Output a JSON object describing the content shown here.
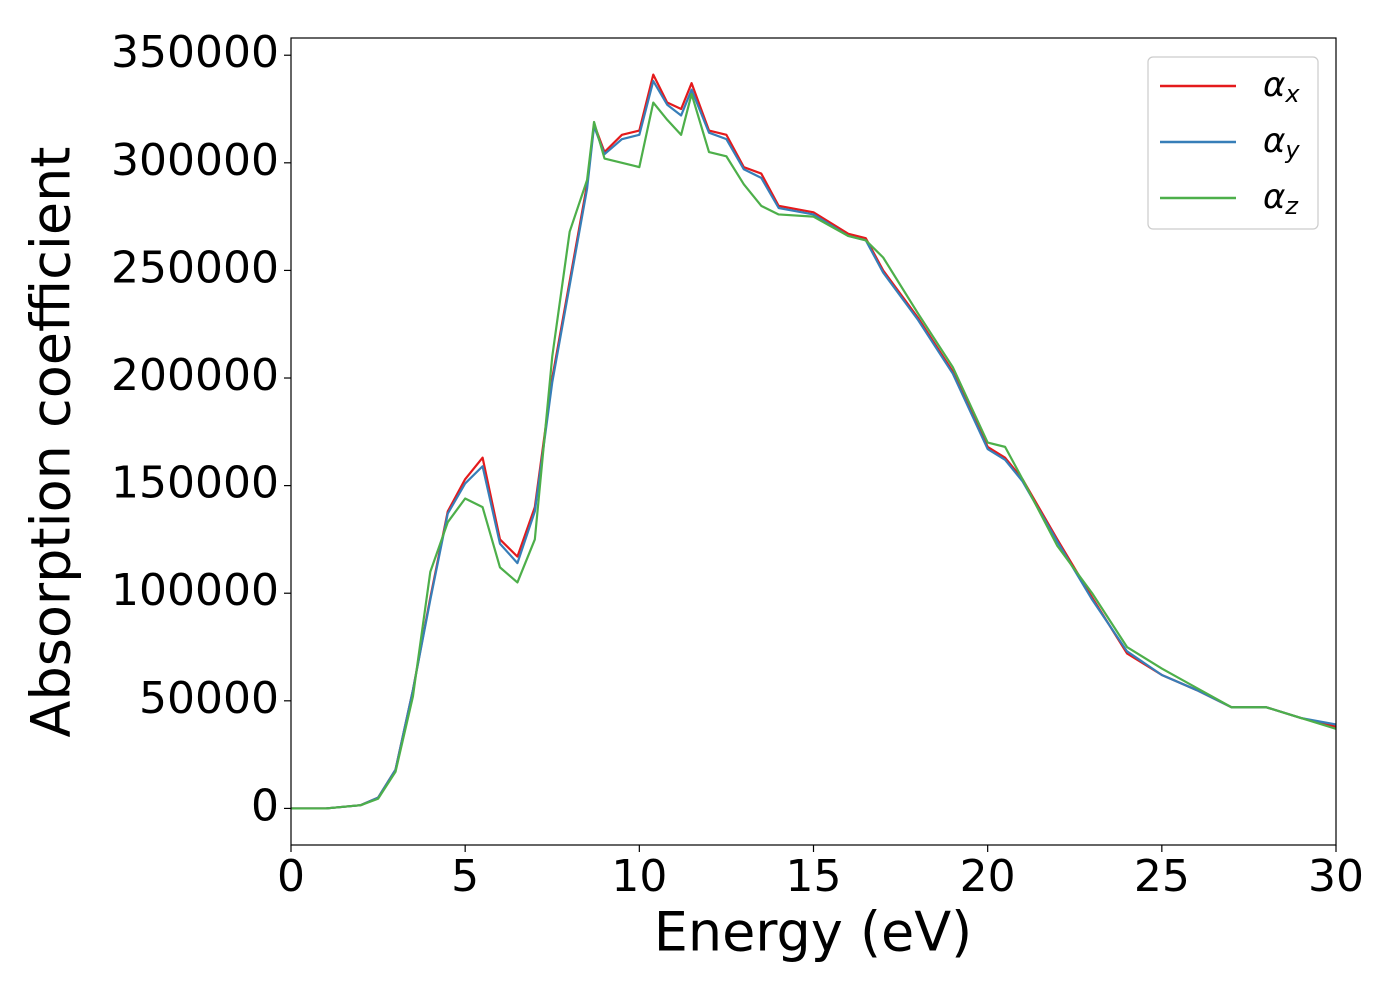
{
  "chart_data": {
    "type": "line",
    "xlabel": "Energy (eV)",
    "ylabel": "Absorption coefficient",
    "x": [
      0,
      1,
      2,
      2.5,
      3,
      3.5,
      4,
      4.5,
      5,
      5.5,
      6,
      6.5,
      7,
      7.5,
      8,
      8.5,
      8.7,
      9,
      9.5,
      10,
      10.4,
      10.8,
      11.2,
      11.5,
      12,
      12.5,
      13,
      13.5,
      14,
      15,
      16,
      16.5,
      17,
      18,
      19,
      20,
      20.5,
      21,
      22,
      23,
      24,
      25,
      26,
      27,
      28,
      29,
      30
    ],
    "series": [
      {
        "name": "αx",
        "color": "#e41a1c",
        "values": [
          0,
          0,
          1500,
          5000,
          18000,
          55000,
          98000,
          138000,
          153000,
          163000,
          125000,
          117000,
          140000,
          200000,
          245000,
          290000,
          318000,
          305000,
          313000,
          315000,
          341000,
          328000,
          325000,
          337000,
          315000,
          313000,
          298000,
          295000,
          280000,
          277000,
          267000,
          265000,
          250000,
          228000,
          203000,
          168000,
          163000,
          153000,
          125000,
          98000,
          72000,
          62000,
          55000,
          47000,
          47000,
          42000,
          38000
        ]
      },
      {
        "name": "αy",
        "color": "#377eb8",
        "values": [
          0,
          0,
          1500,
          5000,
          18000,
          55000,
          97000,
          137000,
          151000,
          159000,
          123000,
          114000,
          138000,
          198000,
          243000,
          288000,
          317000,
          304000,
          311000,
          313000,
          338000,
          327000,
          322000,
          334000,
          314000,
          311000,
          297000,
          293000,
          279000,
          276000,
          266000,
          264000,
          249000,
          227000,
          202000,
          167000,
          162000,
          152000,
          124000,
          97000,
          73000,
          62000,
          55000,
          47000,
          47000,
          42000,
          39000
        ]
      },
      {
        "name": "αz",
        "color": "#4daf4a",
        "values": [
          0,
          0,
          1500,
          4500,
          17000,
          52000,
          110000,
          133000,
          144000,
          140000,
          112000,
          105000,
          125000,
          210000,
          268000,
          292000,
          319000,
          302000,
          300000,
          298000,
          328000,
          320000,
          313000,
          332000,
          305000,
          303000,
          290000,
          280000,
          276000,
          275000,
          266000,
          264000,
          256000,
          230000,
          205000,
          170000,
          168000,
          153000,
          122000,
          100000,
          75000,
          65000,
          56000,
          47000,
          47000,
          42000,
          37000
        ]
      }
    ],
    "xlim": [
      0,
      30
    ],
    "ylim": [
      -17000,
      358000
    ],
    "xticks": [
      0,
      5,
      10,
      15,
      20,
      25,
      30
    ],
    "yticks": [
      0,
      50000,
      100000,
      150000,
      200000,
      250000,
      300000,
      350000
    ],
    "legend": "upper right"
  }
}
